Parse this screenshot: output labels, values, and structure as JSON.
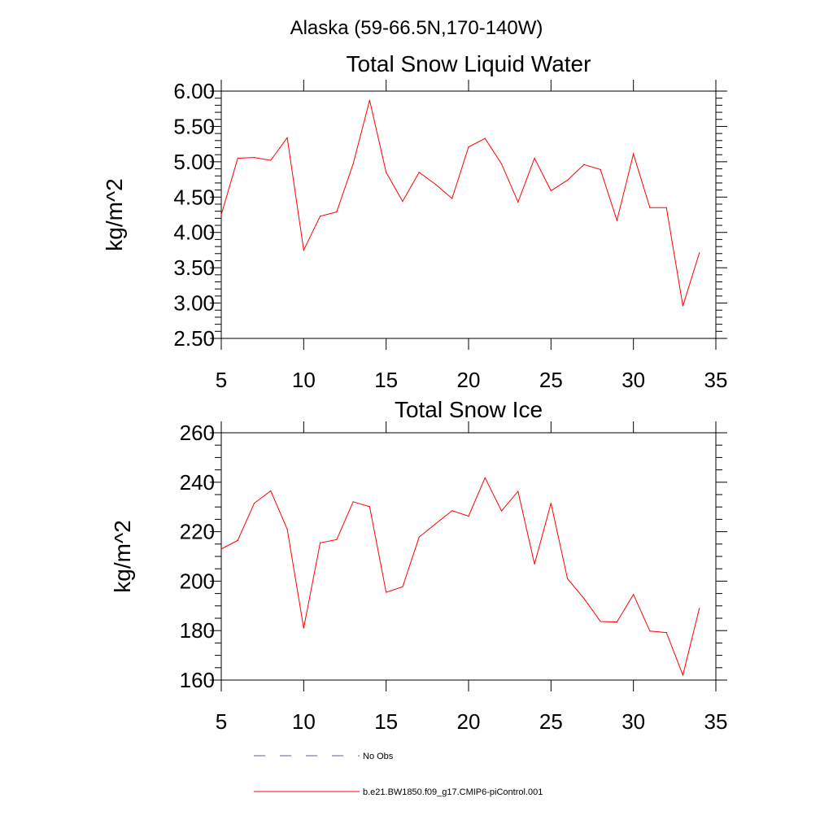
{
  "figure": {
    "suptitle": "Alaska (59-66.5N,170-140W)"
  },
  "chart_data": [
    {
      "type": "line",
      "title": "Total Snow Liquid Water",
      "xlabel": "",
      "ylabel": "kg/m^2",
      "xlim": [
        5,
        35
      ],
      "ylim": [
        2.5,
        6.0
      ],
      "xticks": [
        5,
        10,
        15,
        20,
        25,
        30,
        35
      ],
      "yticks": [
        2.5,
        3.0,
        3.5,
        4.0,
        4.5,
        5.0,
        5.5,
        6.0
      ],
      "ytick_labels": [
        "2.50",
        "3.00",
        "3.50",
        "4.00",
        "4.50",
        "5.00",
        "5.50",
        "6.00"
      ],
      "series": [
        {
          "name": "b.e21.BW1850.f09_g17.CMIP6-piControl.001",
          "color": "#ff0000",
          "x": [
            5,
            6,
            7,
            8,
            9,
            10,
            11,
            12,
            13,
            14,
            15,
            16,
            17,
            18,
            19,
            20,
            21,
            22,
            23,
            24,
            25,
            26,
            27,
            28,
            29,
            30,
            31,
            32,
            33,
            34
          ],
          "y": [
            4.25,
            5.05,
            5.06,
            5.02,
            5.34,
            3.75,
            4.23,
            4.29,
            4.97,
            5.87,
            4.85,
            4.44,
            4.85,
            4.68,
            4.48,
            5.21,
            5.33,
            4.97,
            4.43,
            5.05,
            4.59,
            4.74,
            4.96,
            4.89,
            4.17,
            5.11,
            4.35,
            4.35,
            2.96,
            3.71
          ]
        }
      ]
    },
    {
      "type": "line",
      "title": "Total Snow Ice",
      "xlabel": "",
      "ylabel": "kg/m^2",
      "xlim": [
        5,
        35
      ],
      "ylim": [
        160,
        260
      ],
      "xticks": [
        5,
        10,
        15,
        20,
        25,
        30,
        35
      ],
      "yticks": [
        160,
        180,
        200,
        220,
        240,
        260
      ],
      "ytick_labels": [
        "160",
        "180",
        "200",
        "220",
        "240",
        "260"
      ],
      "series": [
        {
          "name": "b.e21.BW1850.f09_g17.CMIP6-piControl.001",
          "color": "#ff0000",
          "x": [
            5,
            6,
            7,
            8,
            9,
            10,
            11,
            12,
            13,
            14,
            15,
            16,
            17,
            18,
            19,
            20,
            21,
            22,
            23,
            24,
            25,
            26,
            27,
            28,
            29,
            30,
            31,
            32,
            33,
            34
          ],
          "y": [
            213,
            216.5,
            231.5,
            236.5,
            221,
            181,
            215.5,
            216.8,
            232.1,
            230.1,
            195.5,
            197.7,
            217.8,
            223.2,
            228.5,
            226.3,
            241.8,
            228.4,
            236.3,
            206.9,
            231.5,
            201,
            193,
            183.7,
            183.5,
            194.6,
            179.8,
            179.2,
            162,
            189
          ]
        }
      ]
    }
  ],
  "legend": {
    "entries": [
      {
        "label": "No Obs",
        "style": "dashed",
        "color": "#5a5a9a"
      },
      {
        "label": "b.e21.BW1850.f09_g17.CMIP6-piControl.001",
        "style": "solid",
        "color": "#ff0000"
      }
    ]
  }
}
